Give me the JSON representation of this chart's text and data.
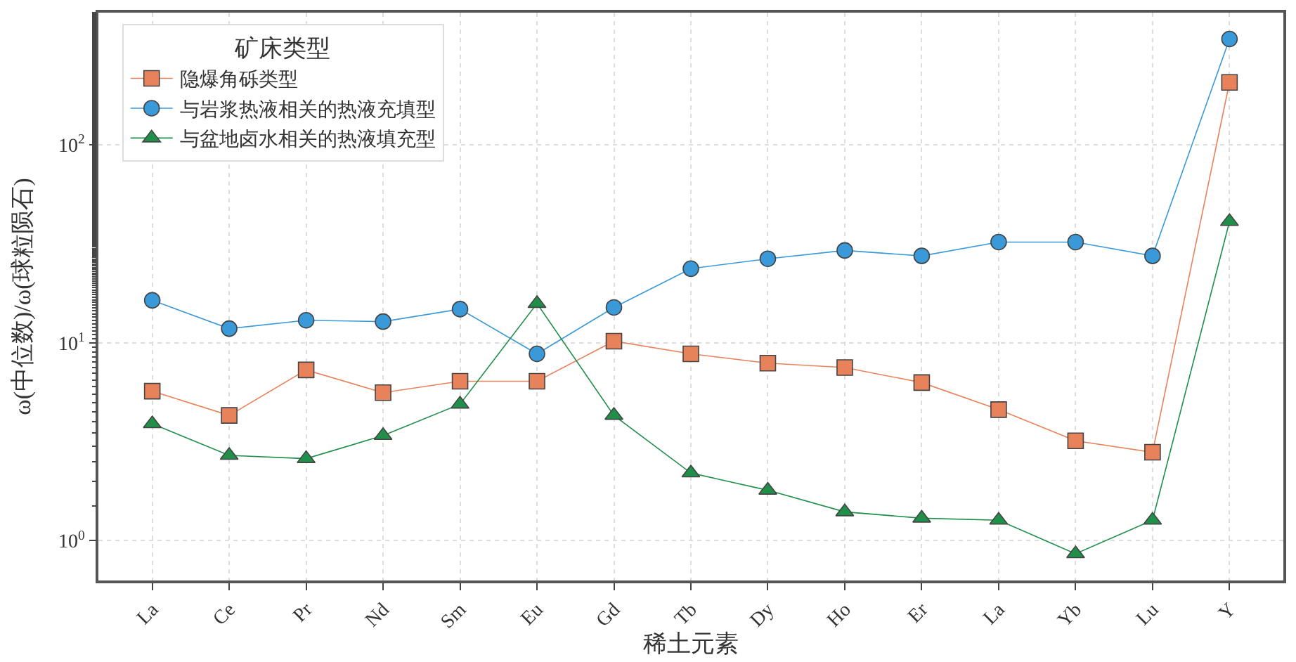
{
  "chart_data": {
    "type": "line",
    "xlabel": "稀土元素",
    "ylabel": "ω(中位数)/ω(球粒陨石)",
    "legend_title": "矿床类型",
    "categories": [
      "La",
      "Ce",
      "Pr",
      "Nd",
      "Sm",
      "Eu",
      "Gd",
      "Tb",
      "Dy",
      "Ho",
      "Er",
      "La",
      "Yb",
      "Lu",
      "Y"
    ],
    "series": [
      {
        "name": "隐爆角砾类型",
        "color": "#e8825a",
        "marker": "square",
        "values": [
          5.7,
          4.3,
          7.3,
          5.6,
          6.4,
          6.4,
          10.2,
          8.8,
          7.9,
          7.5,
          6.3,
          4.6,
          3.2,
          2.8,
          207
        ]
      },
      {
        "name": "与岩浆热液相关的热液充填型",
        "color": "#3a9ad9",
        "marker": "circle",
        "values": [
          16.4,
          11.8,
          13.0,
          12.8,
          14.8,
          8.8,
          15.1,
          23.7,
          26.6,
          29.3,
          27.5,
          32.3,
          32.3,
          27.5,
          343
        ]
      },
      {
        "name": "与盆地卤水相关的热液填充型",
        "color": "#1f8f4a",
        "marker": "triangle",
        "values": [
          3.9,
          2.7,
          2.6,
          3.4,
          4.9,
          15.8,
          4.3,
          2.2,
          1.8,
          1.4,
          1.3,
          1.27,
          0.86,
          1.27,
          41
        ]
      }
    ],
    "log": "y",
    "ylim": [
      0.63,
      466
    ],
    "yticks": [
      {
        "value": 1,
        "label": "10$^{0}$"
      },
      {
        "value": 10,
        "label": "10$^{1}$"
      },
      {
        "value": 100,
        "label": "10$^{2}$"
      }
    ],
    "grid": true,
    "legend": "top left"
  }
}
